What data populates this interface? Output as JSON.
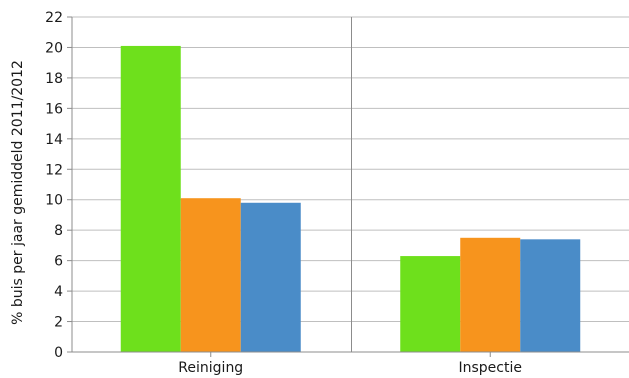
{
  "chart_data": {
    "type": "bar",
    "categories": [
      "Reiniging",
      "Inspectie"
    ],
    "series": [
      {
        "color": "#6ee01c",
        "values": [
          20.1,
          6.3
        ]
      },
      {
        "color": "#f7941d",
        "values": [
          10.1,
          7.5
        ]
      },
      {
        "color": "#4a8cc8",
        "values": [
          9.8,
          7.4
        ]
      }
    ],
    "xlabel": "",
    "ylabel": "% buis per jaar gemiddeld 2011/2012",
    "ylim": [
      0,
      22
    ],
    "yticks": [
      "0",
      "2",
      "4",
      "6",
      "8",
      "10",
      "12",
      "14",
      "16",
      "18",
      "20",
      "22"
    ],
    "grid": true,
    "legend": "none"
  }
}
